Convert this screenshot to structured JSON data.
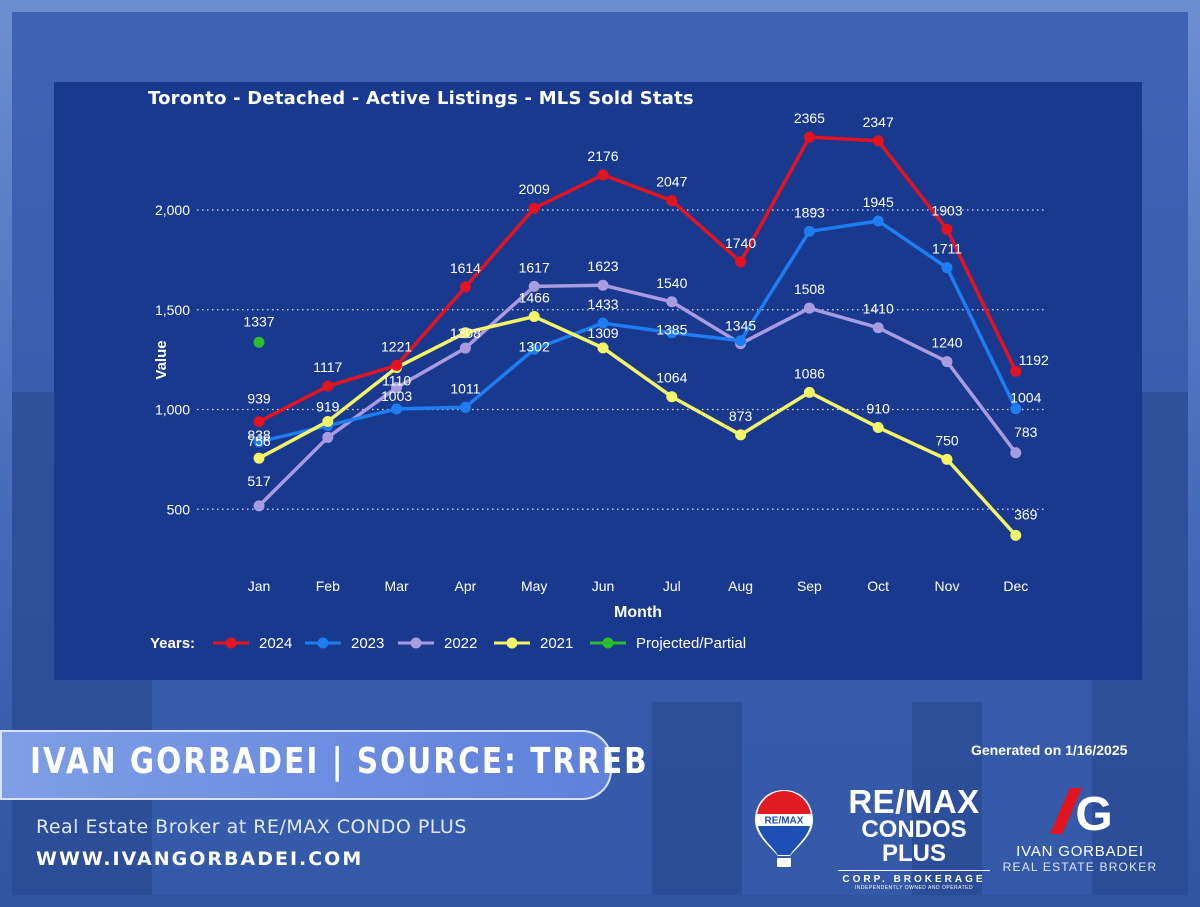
{
  "chart_data": {
    "type": "line",
    "title": "Toronto - Detached - Active Listings - MLS Sold Stats",
    "xlabel": "Month",
    "ylabel": "Value",
    "categories": [
      "Jan",
      "Feb",
      "Mar",
      "Apr",
      "May",
      "Jun",
      "Jul",
      "Aug",
      "Sep",
      "Oct",
      "Nov",
      "Dec"
    ],
    "y_ticks": [
      500,
      1000,
      1500,
      2000
    ],
    "y_tick_labels": [
      "500",
      "1,000",
      "1,500",
      "2,000"
    ],
    "ylim": [
      400,
      2450
    ],
    "grid": "horizontal dotted",
    "legend_title": "Years:",
    "legend_position": "bottom",
    "series": [
      {
        "name": "2024",
        "color": "#e3141f",
        "values": [
          939,
          1117,
          1221,
          1614,
          2009,
          2176,
          2047,
          1740,
          2365,
          2347,
          1903,
          1192
        ]
      },
      {
        "name": "2023",
        "color": "#1e7df0",
        "values": [
          838,
          919,
          1003,
          1011,
          1302,
          1433,
          1385,
          1345,
          1893,
          1945,
          1711,
          1004
        ]
      },
      {
        "name": "2022",
        "color": "#a99be0",
        "values": [
          517,
          860,
          1110,
          1308,
          1617,
          1623,
          1540,
          1330,
          1508,
          1410,
          1240,
          783
        ]
      },
      {
        "name": "2021",
        "color": "#f4f469",
        "values": [
          756,
          940,
          1210,
          1385,
          1466,
          1309,
          1064,
          873,
          1086,
          910,
          750,
          369
        ]
      },
      {
        "name": "Projected/Partial",
        "color": "#2bbd2b",
        "values": [
          1337,
          null,
          null,
          null,
          null,
          null,
          null,
          null,
          null,
          null,
          null,
          null
        ]
      }
    ],
    "data_labels": [
      {
        "month": "Jan",
        "text": "1337",
        "value": 1337,
        "series": "Projected/Partial"
      },
      {
        "month": "Jan",
        "text": "939",
        "value": 939,
        "series": "2024"
      },
      {
        "month": "Jan",
        "text": "838",
        "value": 838,
        "series": "2023"
      },
      {
        "month": "Jan",
        "text": "756",
        "value": 756,
        "series": "2021"
      },
      {
        "month": "Jan",
        "text": "517",
        "value": 517,
        "series": "2022"
      },
      {
        "month": "Feb",
        "text": "1117",
        "value": 1117,
        "series": "2024"
      },
      {
        "month": "Feb",
        "text": "919",
        "value": 919,
        "series": "2023"
      },
      {
        "month": "Mar",
        "text": "1221",
        "value": 1221,
        "series": "2024"
      },
      {
        "month": "Mar",
        "text": "1110",
        "value": 1110,
        "series": "2022"
      },
      {
        "month": "Mar",
        "text": "1003",
        "value": 1003,
        "series": "2023"
      },
      {
        "month": "Apr",
        "text": "1614",
        "value": 1614,
        "series": "2024"
      },
      {
        "month": "Apr",
        "text": "1308",
        "value": 1308,
        "series": "2022"
      },
      {
        "month": "Apr",
        "text": "1011",
        "value": 1011,
        "series": "2023"
      },
      {
        "month": "May",
        "text": "2009",
        "value": 2009,
        "series": "2024"
      },
      {
        "month": "May",
        "text": "1617",
        "value": 1617,
        "series": "2022"
      },
      {
        "month": "May",
        "text": "1466",
        "value": 1466,
        "series": "2021"
      },
      {
        "month": "May",
        "text": "1302",
        "value": 1302,
        "series": "2023"
      },
      {
        "month": "Jun",
        "text": "2176",
        "value": 2176,
        "series": "2024"
      },
      {
        "month": "Jun",
        "text": "1623",
        "value": 1623,
        "series": "2022"
      },
      {
        "month": "Jun",
        "text": "1433",
        "value": 1433,
        "series": "2023"
      },
      {
        "month": "Jun",
        "text": "1309",
        "value": 1309,
        "series": "2021"
      },
      {
        "month": "Jul",
        "text": "2047",
        "value": 2047,
        "series": "2024"
      },
      {
        "month": "Jul",
        "text": "1540",
        "value": 1540,
        "series": "2022"
      },
      {
        "month": "Jul",
        "text": "1385",
        "value": 1385,
        "series": "2023"
      },
      {
        "month": "Jul",
        "text": "1064",
        "value": 1064,
        "series": "2021"
      },
      {
        "month": "Aug",
        "text": "1740",
        "value": 1740,
        "series": "2024"
      },
      {
        "month": "Aug",
        "text": "1345",
        "value": 1345,
        "series": "2023"
      },
      {
        "month": "Aug",
        "text": "873",
        "value": 873,
        "series": "2021"
      },
      {
        "month": "Sep",
        "text": "2365",
        "value": 2365,
        "series": "2024"
      },
      {
        "month": "Sep",
        "text": "1893",
        "value": 1893,
        "series": "2023"
      },
      {
        "month": "Sep",
        "text": "1508",
        "value": 1508,
        "series": "2022"
      },
      {
        "month": "Sep",
        "text": "1086",
        "value": 1086,
        "series": "2021"
      },
      {
        "month": "Oct",
        "text": "2347",
        "value": 2347,
        "series": "2024"
      },
      {
        "month": "Oct",
        "text": "1945",
        "value": 1945,
        "series": "2023"
      },
      {
        "month": "Oct",
        "text": "1410",
        "value": 1410,
        "series": "2022"
      },
      {
        "month": "Oct",
        "text": "910",
        "value": 910,
        "series": "2021"
      },
      {
        "month": "Nov",
        "text": "1903",
        "value": 1903,
        "series": "2024"
      },
      {
        "month": "Nov",
        "text": "1711",
        "value": 1711,
        "series": "2023"
      },
      {
        "month": "Nov",
        "text": "1240",
        "value": 1240,
        "series": "2022"
      },
      {
        "month": "Nov",
        "text": "750",
        "value": 750,
        "series": "2021"
      },
      {
        "month": "Dec",
        "text": "1192",
        "value": 1192,
        "series": "2024"
      },
      {
        "month": "Dec",
        "text": "1004",
        "value": 1004,
        "series": "2023"
      },
      {
        "month": "Dec",
        "text": "783",
        "value": 783,
        "series": "2022"
      },
      {
        "month": "Dec",
        "text": "369",
        "value": 369,
        "series": "2021"
      }
    ]
  },
  "branding": {
    "banner": "IVAN GORBADEI  |  SOURCE: TRREB",
    "subtitle": "Real Estate Broker at RE/MAX CONDO PLUS",
    "website": "WWW.IVANGORBADEI.COM",
    "generated": "Generated on 1/16/2025",
    "balloon_text": "RE/MAX",
    "remax_line1": "RE/MAX",
    "remax_line2": "CONDOS PLUS",
    "remax_line3": "CORP. BROKERAGE",
    "remax_line4": "INDEPENDENTLY OWNED AND OPERATED",
    "ig_name": "IVAN GORBADEI",
    "ig_role": "REAL ESTATE BROKER",
    "ig_monogram": "G"
  }
}
